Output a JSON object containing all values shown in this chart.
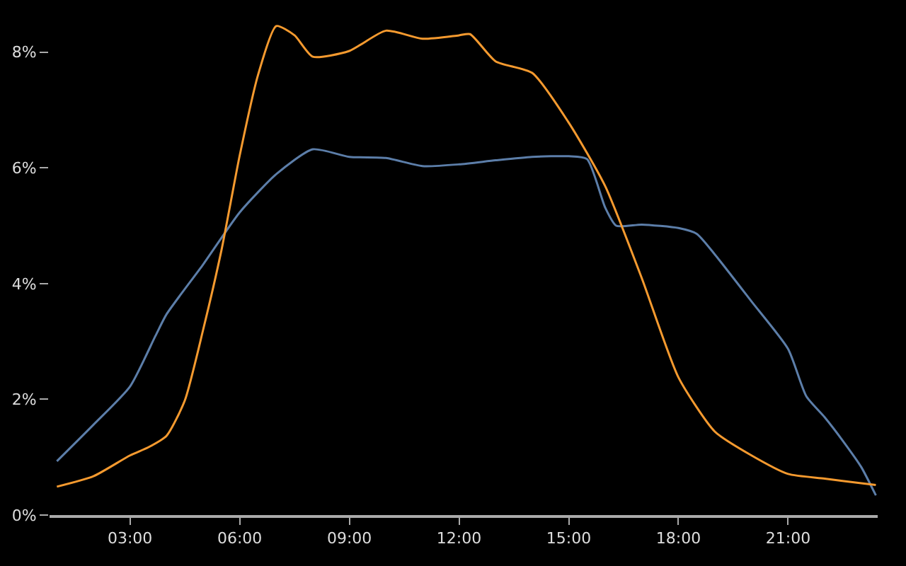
{
  "chart_data": {
    "type": "line",
    "xlim": [
      0.8,
      23.45
    ],
    "xticks": [
      {
        "value": 3,
        "label": "03:00"
      },
      {
        "value": 6,
        "label": "06:00"
      },
      {
        "value": 9,
        "label": "09:00"
      },
      {
        "value": 12,
        "label": "12:00"
      },
      {
        "value": 15,
        "label": "15:00"
      },
      {
        "value": 18,
        "label": "18:00"
      },
      {
        "value": 21,
        "label": "21:00"
      }
    ],
    "ylim": [
      0,
      8.9
    ],
    "yticks": [
      {
        "value": 0,
        "label": "0%"
      },
      {
        "value": 2,
        "label": "2%"
      },
      {
        "value": 4,
        "label": "4%"
      },
      {
        "value": 6,
        "label": "6%"
      },
      {
        "value": 8,
        "label": "8%"
      }
    ],
    "grid": false,
    "marker": "none",
    "line_style": "solid",
    "series": [
      {
        "color": "#5c7ea9",
        "x": [
          1,
          2,
          3,
          3.7,
          4,
          5,
          6,
          7,
          8,
          9,
          10,
          11,
          12,
          13,
          14,
          15,
          15.5,
          16,
          16.3,
          17,
          18,
          18.5,
          19,
          20,
          21,
          21.5,
          22,
          22.5,
          23,
          23.4
        ],
        "values": [
          0.93,
          1.56,
          2.22,
          3.1,
          3.47,
          4.33,
          5.23,
          5.89,
          6.32,
          6.19,
          6.17,
          6.03,
          6.06,
          6.13,
          6.19,
          6.2,
          6.15,
          5.31,
          5.0,
          5.02,
          4.96,
          4.86,
          4.5,
          3.69,
          2.87,
          2.05,
          1.69,
          1.28,
          0.83,
          0.34
        ]
      },
      {
        "color": "#f59a2f",
        "x": [
          1,
          2,
          3,
          3.5,
          4,
          4.5,
          5,
          5.5,
          6,
          6.5,
          7,
          7.5,
          8,
          9,
          10,
          11,
          12,
          12.3,
          13,
          14,
          15,
          16,
          17,
          18,
          19,
          20,
          21,
          22,
          23,
          23.4
        ],
        "values": [
          0.49,
          0.67,
          1.03,
          1.17,
          1.37,
          1.98,
          3.2,
          4.57,
          6.21,
          7.6,
          8.45,
          8.29,
          7.92,
          8.02,
          8.37,
          8.23,
          8.29,
          8.31,
          7.84,
          7.64,
          6.78,
          5.68,
          4.09,
          2.38,
          1.44,
          1.03,
          0.71,
          0.63,
          0.55,
          0.52
        ]
      }
    ]
  }
}
